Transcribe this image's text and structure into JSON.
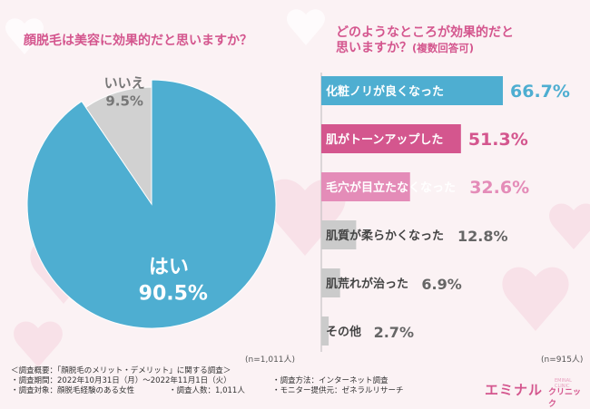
{
  "pie_question": "顔脱毛は美容に効果的だと思いますか？",
  "pie_n": "(n=1,011人)",
  "bar_question_line1": "どのようなところが効果的だと",
  "bar_question_line2": "思いますか？",
  "bar_question_suffix": "(複数回答可)",
  "bar_n": "(n=915人)",
  "footer": {
    "title": "＜調査概要：「顔脱毛のメリット・デメリット」に関する調査＞",
    "period": "・調査期間：2022年10月31日（月）～2022年11月1日（火）",
    "target": "・調査対象：顔脱毛経験のある女性",
    "count": "・調査人数：1,011人",
    "method": "・調査方法：インターネット調査",
    "provider": "・モニター提供元：ゼネラルリサーチ"
  },
  "logo": {
    "main": "エミナル",
    "sub": "クリニック",
    "tag": "EMINAL CLINIC"
  },
  "colors": {
    "pie_yes": "#4eaed1",
    "pie_no": "#d1d1d1",
    "bar_blue": "#4eaed1",
    "bar_pink": "#d4568e",
    "bar_lightpink": "#e48cb8",
    "bar_gray": "#cbcbcb",
    "title_pink": "#d4568e"
  },
  "chart_data": [
    {
      "type": "pie",
      "title": "顔脱毛は美容に効果的だと思いますか？",
      "slices": [
        {
          "label": "はい",
          "value": 90.5,
          "value_label": "90.5%"
        },
        {
          "label": "いいえ",
          "value": 9.5,
          "value_label": "9.5%"
        }
      ]
    },
    {
      "type": "bar",
      "orientation": "horizontal",
      "title": "どのようなところが効果的だと思いますか？(複数回答可)",
      "categories": [
        "化粧ノリが良くなった",
        "肌がトーンアップした",
        "毛穴が目立たなくなった",
        "肌質が柔らかくなった",
        "肌荒れが治った",
        "その他"
      ],
      "values": [
        66.7,
        51.3,
        32.6,
        12.8,
        6.9,
        2.7
      ],
      "value_labels": [
        "66.7%",
        "51.3%",
        "32.6%",
        "12.8%",
        "6.9%",
        "2.7%"
      ]
    }
  ]
}
